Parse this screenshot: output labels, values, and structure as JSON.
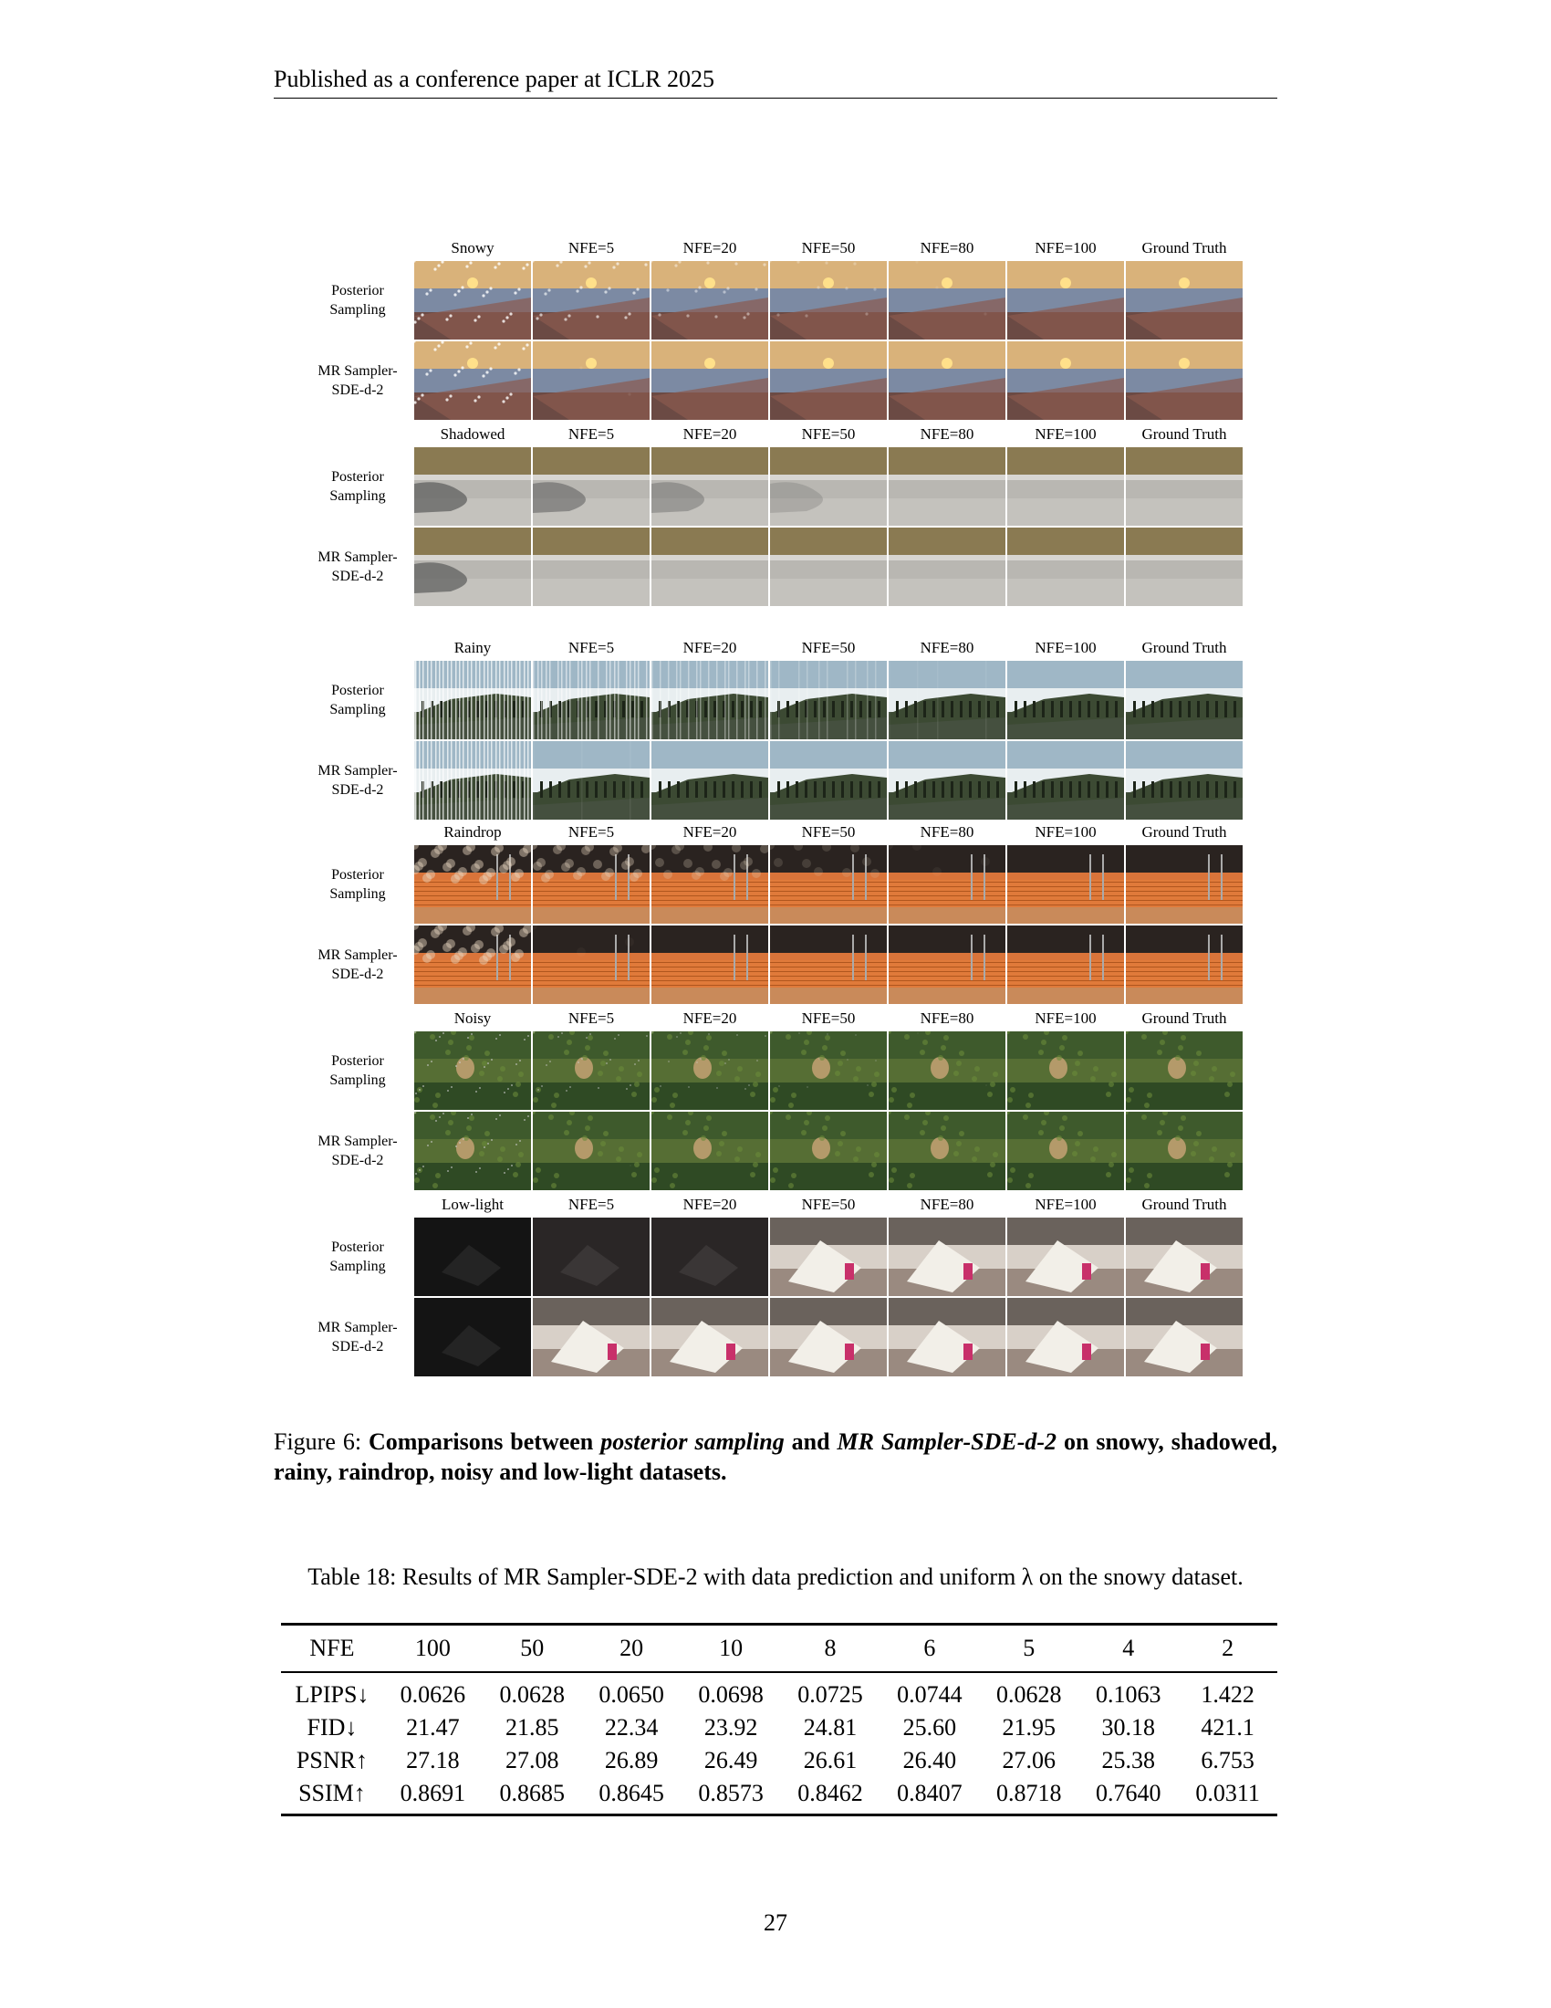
{
  "header": "Published as a conference paper at ICLR 2025",
  "figure": {
    "row_labels": [
      "Posterior\nSampling",
      "MR Sampler-\nSDE-d-2"
    ],
    "nfe_headers": [
      "NFE=5",
      "NFE=20",
      "NFE=50",
      "NFE=80",
      "NFE=100",
      "Ground Truth"
    ],
    "groups": [
      {
        "input": "Snowy",
        "scene": "snowy"
      },
      {
        "input": "Shadowed",
        "scene": "shadowed"
      },
      {
        "input": "Rainy",
        "scene": "rainy"
      },
      {
        "input": "Raindrop",
        "scene": "raindrop"
      },
      {
        "input": "Noisy",
        "scene": "noisy"
      },
      {
        "input": "Low-light",
        "scene": "lowlight"
      }
    ],
    "caption_prefix": "Figure 6: ",
    "caption_bold_1": "Comparisons between ",
    "caption_italic_1": "posterior sampling",
    "caption_bold_2": " and ",
    "caption_italic_2": "MR Sampler-SDE-d-2",
    "caption_bold_3": " on snowy, shadowed, rainy, raindrop, noisy and low-light datasets."
  },
  "table": {
    "caption": "Table 18: Results of MR Sampler-SDE-2 with data prediction and uniform λ on the snowy dataset.",
    "header": [
      "NFE",
      "100",
      "50",
      "20",
      "10",
      "8",
      "6",
      "5",
      "4",
      "2"
    ],
    "rows": [
      [
        "LPIPS↓",
        "0.0626",
        "0.0628",
        "0.0650",
        "0.0698",
        "0.0725",
        "0.0744",
        "0.0628",
        "0.1063",
        "1.422"
      ],
      [
        "FID↓",
        "21.47",
        "21.85",
        "22.34",
        "23.92",
        "24.81",
        "25.60",
        "21.95",
        "30.18",
        "421.1"
      ],
      [
        "PSNR↑",
        "27.18",
        "27.08",
        "26.89",
        "26.49",
        "26.61",
        "26.40",
        "27.06",
        "25.38",
        "6.753"
      ],
      [
        "SSIM↑",
        "0.8691",
        "0.8685",
        "0.8645",
        "0.8573",
        "0.8462",
        "0.8407",
        "0.8718",
        "0.7640",
        "0.0311"
      ]
    ]
  },
  "page_number": "27"
}
